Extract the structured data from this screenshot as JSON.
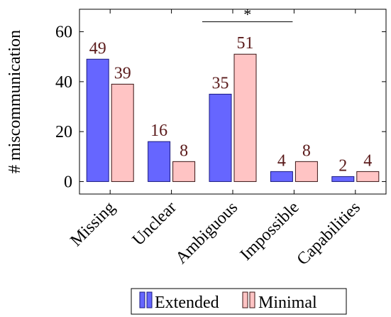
{
  "chart_data": {
    "type": "bar",
    "categories": [
      "Missing",
      "Unclear",
      "Ambiguous",
      "Impossible",
      "Capabilities"
    ],
    "series": [
      {
        "name": "Extended",
        "values": [
          49,
          16,
          35,
          4,
          2
        ],
        "color": "#6666ff",
        "stroke": "#1a1a80"
      },
      {
        "name": "Minimal",
        "values": [
          39,
          8,
          51,
          8,
          4
        ],
        "color": "#ffc4c4",
        "stroke": "#3a1414"
      }
    ],
    "ylabel": "# miscommunication",
    "xlabel": "",
    "yticks": [
      0,
      20,
      40,
      60
    ],
    "ylim": [
      -5,
      69
    ],
    "data_label_color": "#5a1a1a",
    "annotation": {
      "text": "*",
      "categories": [
        "Ambiguous",
        "Impossible"
      ]
    },
    "legend": {
      "position": "bottom",
      "entries": [
        "Extended",
        "Minimal"
      ]
    }
  }
}
